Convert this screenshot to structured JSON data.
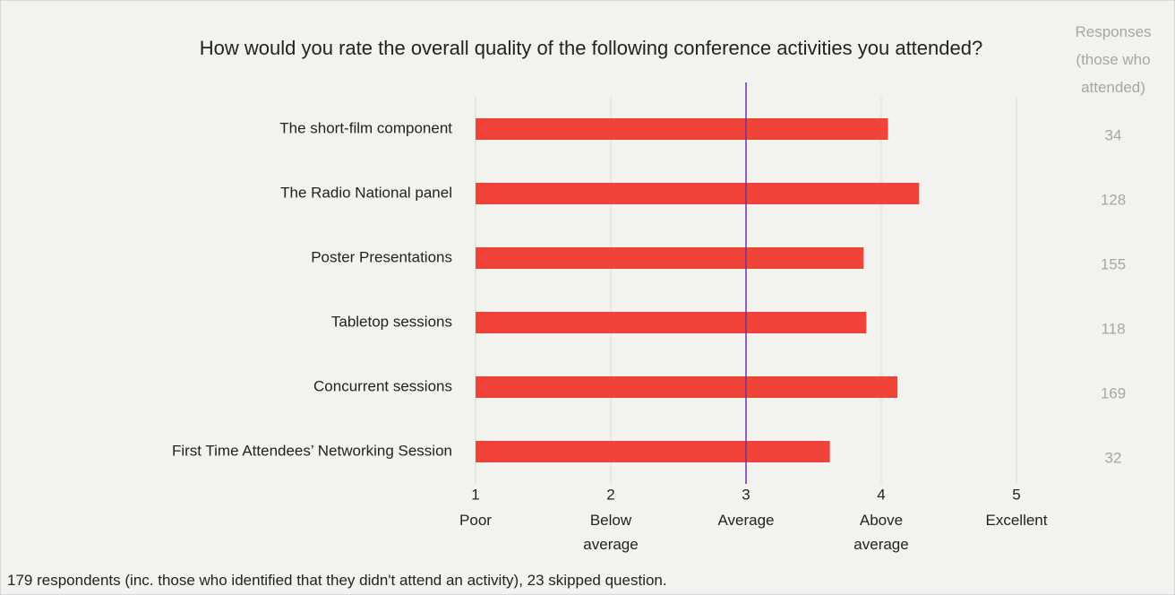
{
  "chart_data": {
    "type": "hbar",
    "title": "How would you rate the overall quality of the following conference activities you attended?",
    "categories": [
      "The short-film component",
      "The Radio National panel",
      "Poster Presentations",
      "Tabletop sessions",
      "Concurrent sessions",
      "First Time Attendees’ Networking Session"
    ],
    "values": [
      4.05,
      4.28,
      3.87,
      3.89,
      4.12,
      3.62
    ],
    "color": "#f0433a",
    "xlim": [
      1,
      5
    ],
    "xticks": [
      1,
      2,
      3,
      4,
      5
    ],
    "xtick_descriptions": [
      "Poor",
      "Below average",
      "Average",
      "Above average",
      "Excellent"
    ],
    "grid": true,
    "reference_line": {
      "value": 3,
      "color": "#7030a0"
    },
    "responses_header": "Responses (those who attended)",
    "responses": [
      34,
      128,
      155,
      118,
      169,
      32
    ],
    "footnote": "179 respondents (inc. those who identified that they didn't attend an activity), 23 skipped question."
  }
}
